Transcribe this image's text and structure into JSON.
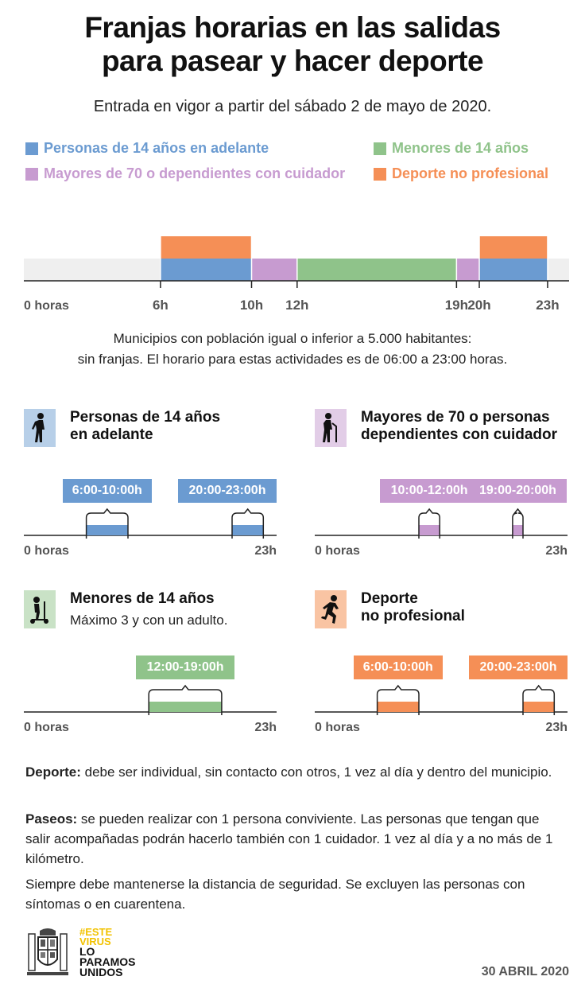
{
  "title_line1": "Franjas horarias en las salidas",
  "title_line2": "para pasear y hacer deporte",
  "subtitle": "Entrada en vigor a partir del sábado 2 de mayo de 2020.",
  "legend": [
    {
      "label": "Personas de 14 años en adelante",
      "color": "#6b9bd1"
    },
    {
      "label": "Menores de 14 años",
      "color": "#8fc38a"
    },
    {
      "label": "Mayores de 70 o dependientes con cuidador",
      "color": "#c79bd0"
    },
    {
      "label": "Deporte no profesional",
      "color": "#f58f56"
    }
  ],
  "timeline": {
    "start_label": "0 horas",
    "ticks": [
      "6h",
      "10h",
      "12h",
      "19h",
      "20h",
      "23h"
    ],
    "tick_hours": [
      6,
      10,
      12,
      19,
      20,
      23
    ],
    "segments": [
      {
        "series": "Personas de 14 años en adelante",
        "from": 6,
        "to": 10,
        "color": "#6b9bd1"
      },
      {
        "series": "Mayores de 70 o dependientes con cuidador",
        "from": 10,
        "to": 12,
        "color": "#c79bd0"
      },
      {
        "series": "Menores de 14 años",
        "from": 12,
        "to": 19,
        "color": "#8fc38a"
      },
      {
        "series": "Mayores de 70 o dependientes con cuidador",
        "from": 19,
        "to": 20,
        "color": "#c79bd0"
      },
      {
        "series": "Personas de 14 años en adelante",
        "from": 20,
        "to": 23,
        "color": "#6b9bd1"
      }
    ],
    "sport": [
      {
        "from": 6,
        "to": 10,
        "color": "#f58f56"
      },
      {
        "from": 20,
        "to": 23,
        "color": "#f58f56"
      }
    ]
  },
  "note_line1": "Municipios con población igual o inferior a 5.000 habitantes:",
  "note_line2": "sin franjas. El horario para estas actividades es de 06:00 a 23:00 horas.",
  "panels": [
    {
      "title1": "Personas de 14 años",
      "title2": "en adelante",
      "sub": "",
      "icon": "walking-person-icon",
      "color": "#6b9bd1",
      "icon_bg": "#b7cfe8",
      "start_label": "0 horas",
      "end_label": "23h",
      "ranges": [
        {
          "label": "6:00-10:00h",
          "from": 6,
          "to": 10
        },
        {
          "label": "20:00-23:00h",
          "from": 20,
          "to": 23
        }
      ]
    },
    {
      "title1": "Mayores de 70 o personas",
      "title2": "dependientes con cuidador",
      "sub": "",
      "icon": "elderly-cane-icon",
      "color": "#c79bd0",
      "icon_bg": "#e2cde7",
      "start_label": "0 horas",
      "end_label": "23h",
      "ranges": [
        {
          "label": "10:00-12:00h",
          "from": 10,
          "to": 12
        },
        {
          "label": "19:00-20:00h",
          "from": 19,
          "to": 20
        }
      ]
    },
    {
      "title1": "Menores de 14 años",
      "title2": "",
      "sub": "Máximo 3 y con un adulto.",
      "icon": "child-scooter-icon",
      "color": "#8fc38a",
      "icon_bg": "#c9e2c6",
      "start_label": "0 horas",
      "end_label": "23h",
      "ranges": [
        {
          "label": "12:00-19:00h",
          "from": 12,
          "to": 19
        }
      ]
    },
    {
      "title1": "Deporte",
      "title2": "no profesional",
      "sub": "",
      "icon": "running-person-icon",
      "color": "#f58f56",
      "icon_bg": "#f9c4a3",
      "start_label": "0 horas",
      "end_label": "23h",
      "ranges": [
        {
          "label": "6:00-10:00h",
          "from": 6,
          "to": 10
        },
        {
          "label": "20:00-23:00h",
          "from": 20,
          "to": 23
        }
      ]
    }
  ],
  "rules": {
    "deporte_label": "Deporte:",
    "deporte_text": " debe ser individual, sin contacto con otros, 1 vez al día y dentro del municipio.",
    "paseos_label": "Paseos:",
    "paseos_text": " se pueden realizar con 1 persona conviviente. Las personas que tengan que salir acompañadas podrán hacerlo también con 1 cuidador. 1 vez al día y a no más de 1 kilómetro.",
    "safety_text": "Siempre debe mantenerse la distancia de seguridad. Se excluyen las personas con síntomas o en cuarentena."
  },
  "footer": {
    "campaign_line1": "#ESTE",
    "campaign_line2": "VIRUS",
    "campaign_line3": "LO",
    "campaign_line4": "PARAMOS",
    "campaign_line5": "UNIDOS",
    "date": "30 ABRIL 2020"
  }
}
